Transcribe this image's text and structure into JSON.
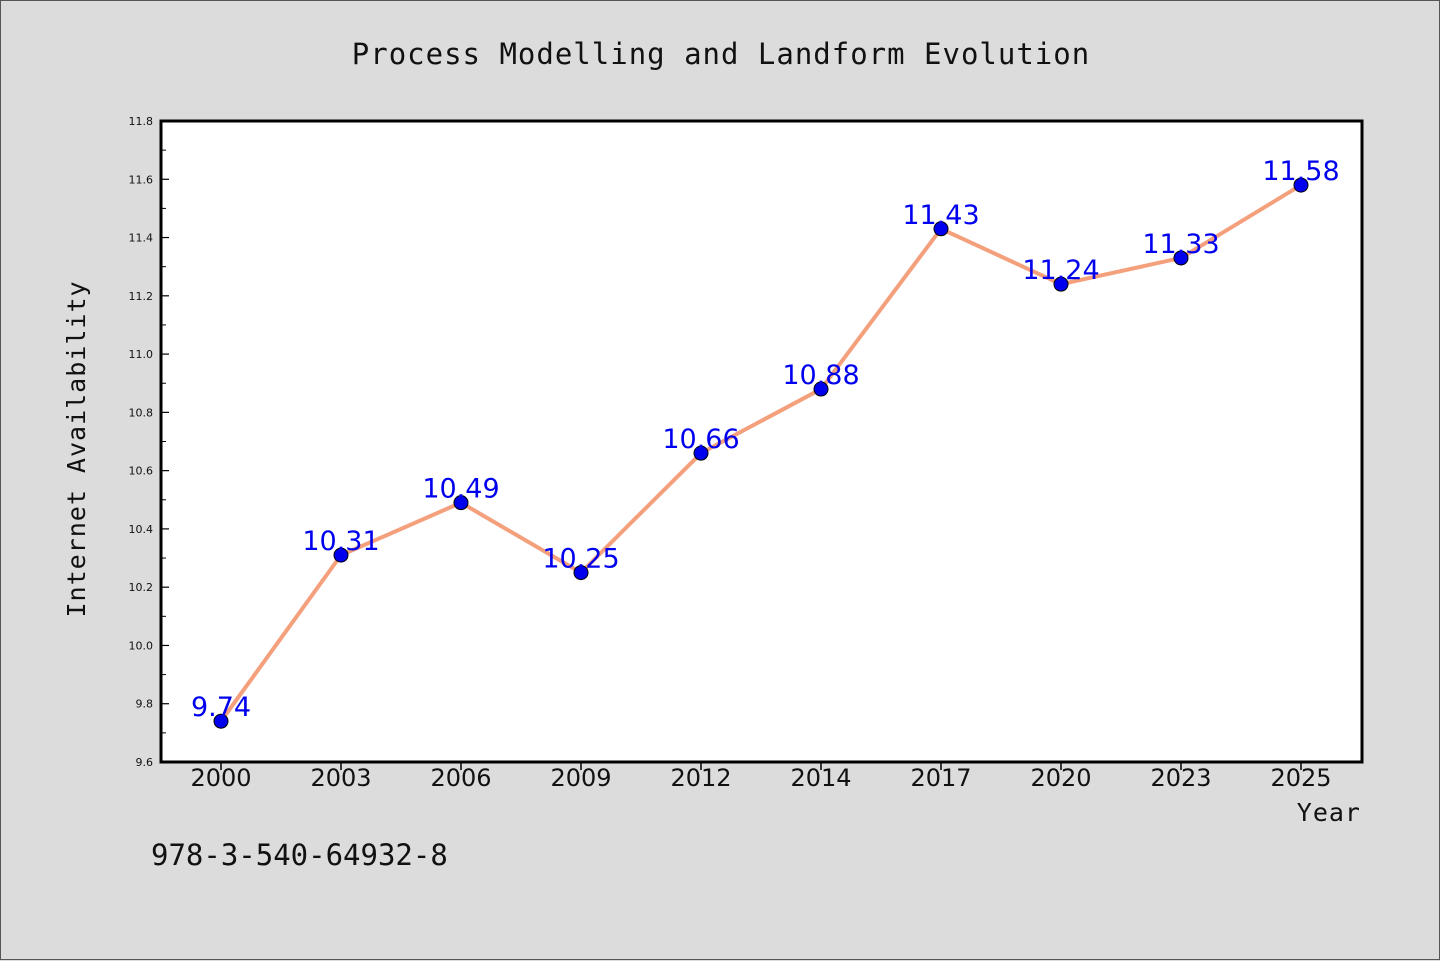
{
  "chart_data": {
    "type": "line",
    "title": "Process Modelling and Landform Evolution",
    "xlabel": "Year",
    "ylabel": "Internet Availability",
    "categories": [
      "2000",
      "2003",
      "2006",
      "2009",
      "2012",
      "2014",
      "2017",
      "2020",
      "2023",
      "2025"
    ],
    "values": [
      9.74,
      10.31,
      10.49,
      10.25,
      10.66,
      10.88,
      11.43,
      11.24,
      11.33,
      11.58
    ],
    "data_labels": [
      "9.74",
      "10.31",
      "10.49",
      "10.25",
      "10.66",
      "10.88",
      "11.43",
      "11.24",
      "11.33",
      "11.58"
    ],
    "ylim": [
      9.6,
      11.8
    ],
    "yticks": [
      "9.6",
      "9.8",
      "10.0",
      "10.2",
      "10.4",
      "10.6",
      "10.8",
      "11.0",
      "11.2",
      "11.4",
      "11.6",
      "11.8"
    ],
    "grid": false,
    "legend": false,
    "line_color": "#f4a07c",
    "marker_color": "#0000ee",
    "label_color": "#0000ee"
  },
  "footer_text": "978-3-540-64932-8"
}
